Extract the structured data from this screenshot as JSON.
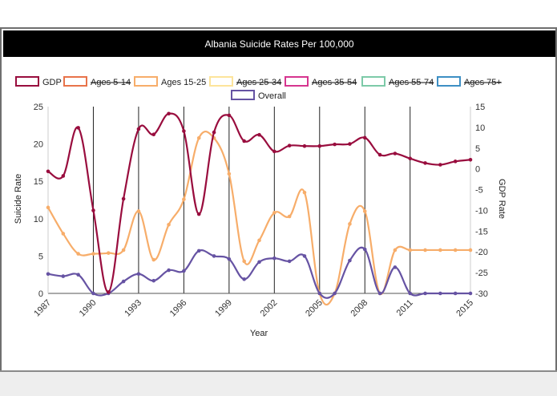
{
  "title": "Albania Suicide Rates Per 100,000",
  "chart_data": {
    "type": "line",
    "title": "Albania Suicide Rates Per 100,000",
    "xlabel": "Year",
    "ylabel": "Suicide Rate",
    "y2label": "GDP Rate",
    "x_ticks": [
      "1987",
      "1990",
      "1993",
      "1996",
      "1999",
      "2002",
      "2005",
      "2008",
      "2011",
      "2015"
    ],
    "y_ticks": [
      "0",
      "5",
      "10",
      "15",
      "20",
      "25"
    ],
    "y2_ticks": [
      "-30",
      "-25",
      "-20",
      "-15",
      "-10",
      "-5",
      "0",
      "5",
      "10",
      "15"
    ],
    "xlim": [
      1987,
      2015
    ],
    "ylim": [
      0,
      25
    ],
    "y2lim": [
      -30,
      15
    ],
    "grid": "vertical lines at each year",
    "legend_position": "top",
    "series": [
      {
        "name": "GDP",
        "axis": "right",
        "color": "#990d3e",
        "hidden": false,
        "x": [
          1987,
          1988,
          1989,
          1990,
          1991,
          1992,
          1993,
          1994,
          1995,
          1996,
          1997,
          1998,
          1999,
          2000,
          2001,
          2002,
          2003,
          2004,
          2005,
          2006,
          2007,
          2008,
          2009,
          2010,
          2011,
          2012,
          2013,
          2014,
          2015
        ],
        "values": [
          -0.6,
          -1.7,
          9.9,
          -10,
          -29.7,
          -7.2,
          9.6,
          8.3,
          13.3,
          9.1,
          -10.9,
          8.8,
          12.9,
          6.7,
          8.2,
          4.2,
          5.6,
          5.5,
          5.5,
          5.9,
          6,
          7.5,
          3.4,
          3.7,
          2.5,
          1.4,
          1,
          1.8,
          2.2
        ]
      },
      {
        "name": "Ages 5-14",
        "axis": "left",
        "color": "#e8734a",
        "hidden": true
      },
      {
        "name": "Ages 15-25",
        "axis": "left",
        "color": "#f7ad6a",
        "hidden": false,
        "x": [
          1987,
          1988,
          1989,
          1990,
          1991,
          1992,
          1993,
          1994,
          1995,
          1996,
          1997,
          1998,
          1999,
          2000,
          2001,
          2002,
          2003,
          2004,
          2005,
          2006,
          2007,
          2008,
          2009,
          2010,
          2011,
          2012,
          2013,
          2014,
          2015
        ],
        "values": [
          11.5,
          8,
          5.3,
          5.3,
          5.4,
          5.8,
          11,
          4.5,
          9.2,
          12.6,
          20.8,
          20.8,
          16,
          4.3,
          7.1,
          10.8,
          10.3,
          13.5,
          0,
          0,
          9.3,
          11,
          0,
          5.8,
          5.8,
          5.8,
          5.8,
          5.8,
          5.8
        ]
      },
      {
        "name": "Ages 25-34",
        "axis": "left",
        "color": "#fde49b",
        "hidden": true
      },
      {
        "name": "Ages 35-54",
        "axis": "left",
        "color": "#d6358f",
        "hidden": true
      },
      {
        "name": "Ages 55-74",
        "axis": "left",
        "color": "#7dcaa8",
        "hidden": true
      },
      {
        "name": "Ages 75+",
        "axis": "left",
        "color": "#3d8fc4",
        "hidden": true
      },
      {
        "name": "Overall",
        "axis": "left",
        "color": "#6653a3",
        "hidden": false,
        "x": [
          1987,
          1988,
          1989,
          1990,
          1991,
          1992,
          1993,
          1994,
          1995,
          1996,
          1997,
          1998,
          1999,
          2000,
          2001,
          2002,
          2003,
          2004,
          2005,
          2006,
          2007,
          2008,
          2009,
          2010,
          2011,
          2012,
          2013,
          2014,
          2015
        ],
        "values": [
          2.6,
          2.3,
          2.5,
          0,
          0,
          1.6,
          2.6,
          1.7,
          3.1,
          3,
          5.7,
          5,
          4.6,
          1.9,
          4.2,
          4.7,
          4.3,
          5,
          0,
          0,
          4.4,
          5.9,
          0,
          3.5,
          0,
          0,
          0,
          0,
          0
        ]
      }
    ]
  }
}
